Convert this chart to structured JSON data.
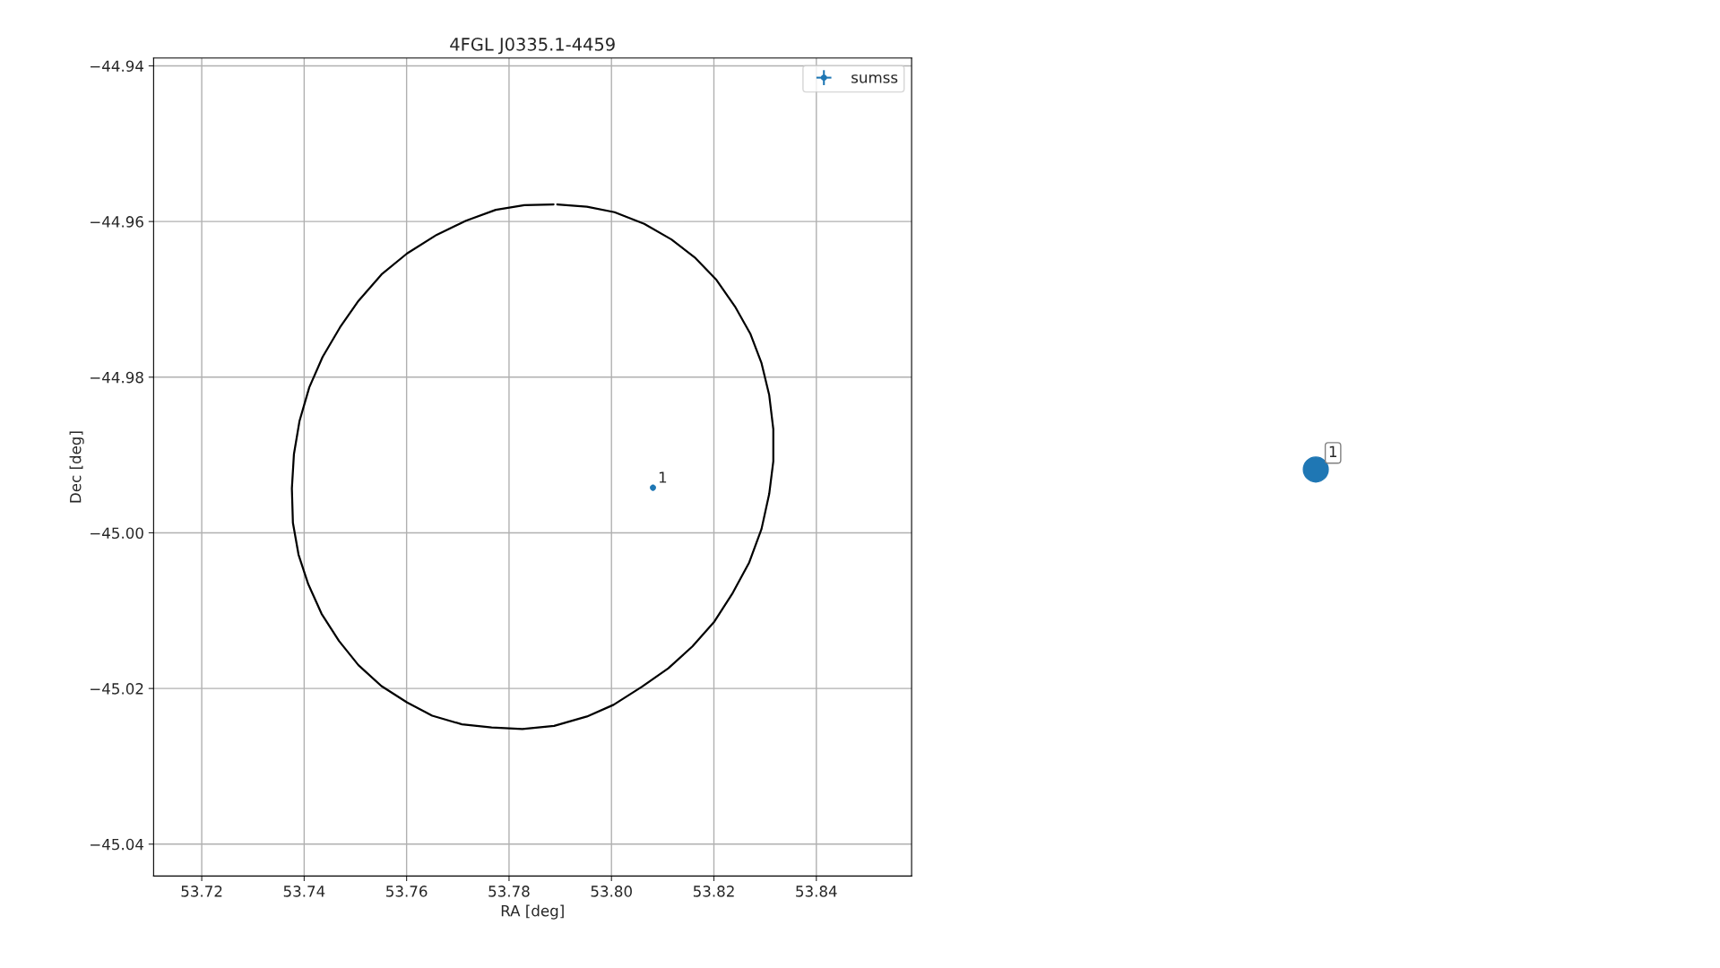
{
  "chart_data": [
    {
      "type": "scatter",
      "title": "4FGL J0335.1-4459",
      "xlabel": "RA [deg]",
      "ylabel": "Dec [deg]",
      "xlim": [
        53.7106,
        53.8586
      ],
      "ylim": [
        -45.0441,
        -44.939
      ],
      "xticks": [
        53.72,
        53.74,
        53.76,
        53.78,
        {
          "value": 53.8,
          "label": "53.80"
        },
        53.82,
        53.84
      ],
      "yticks": [
        {
          "value": -45.04,
          "label": "−45.04"
        },
        {
          "value": -45.02,
          "label": "−45.02"
        },
        {
          "value": -45.0,
          "label": "−45.00"
        },
        {
          "value": -44.98,
          "label": "−44.98"
        },
        {
          "value": -44.96,
          "label": "−44.96"
        },
        {
          "value": -44.94,
          "label": "−44.94"
        }
      ],
      "grid": true,
      "legend": "top right",
      "series": [
        {
          "type": "line",
          "color": "#000000",
          "marker": "none",
          "x": [
            53.7894,
            53.7952,
            53.8006,
            53.8064,
            53.8117,
            53.8164,
            53.8205,
            53.8241,
            53.8271,
            53.8293,
            53.8308,
            53.8316,
            53.8316,
            53.8308,
            53.8293,
            53.8269,
            53.8237,
            53.8201,
            53.8158,
            53.8111,
            53.8059,
            53.8004,
            53.7952,
            53.7888,
            53.7826,
            53.7766,
            53.7708,
            53.765,
            53.7601,
            53.7551,
            53.7506,
            53.7468,
            53.7434,
            53.7408,
            53.7389,
            53.7378,
            53.7376,
            53.738,
            53.7391,
            53.741,
            53.7436,
            53.747,
            53.7506,
            53.7551,
            53.7601,
            53.7659,
            53.7716,
            53.7774,
            53.783,
            53.7887
          ],
          "values": [
            -44.9578,
            -44.9581,
            -44.9588,
            -44.9603,
            -44.9623,
            -44.9647,
            -44.9675,
            -44.9709,
            -44.9744,
            -44.9782,
            -44.9823,
            -44.9867,
            -44.9908,
            -44.995,
            -44.9995,
            -45.0038,
            -45.0077,
            -45.0114,
            -45.0146,
            -45.0174,
            -45.0198,
            -45.0221,
            -45.0236,
            -45.0248,
            -45.0252,
            -45.025,
            -45.0246,
            -45.0235,
            -45.0218,
            -45.0197,
            -45.017,
            -45.0139,
            -45.0104,
            -45.0066,
            -45.0028,
            -44.9987,
            -44.9943,
            -44.9899,
            -44.9856,
            -44.9813,
            -44.9774,
            -44.9736,
            -44.9702,
            -44.9668,
            -44.9641,
            -44.9617,
            -44.9599,
            -44.9585,
            -44.9579,
            -44.9578
          ]
        },
        {
          "type": "scatter",
          "name": "sumss",
          "color": "#1f77b4",
          "marker": "circle",
          "x": [
            53.8081
          ],
          "values": [
            -44.9942
          ],
          "errors": [
            0.0004
          ],
          "xerrors": [
            0.0003
          ]
        }
      ],
      "annotations": [
        {
          "text": "1",
          "x": 53.8081,
          "y": -44.9942
        }
      ]
    },
    {
      "type": "other",
      "annotations": [
        "1"
      ]
    }
  ]
}
